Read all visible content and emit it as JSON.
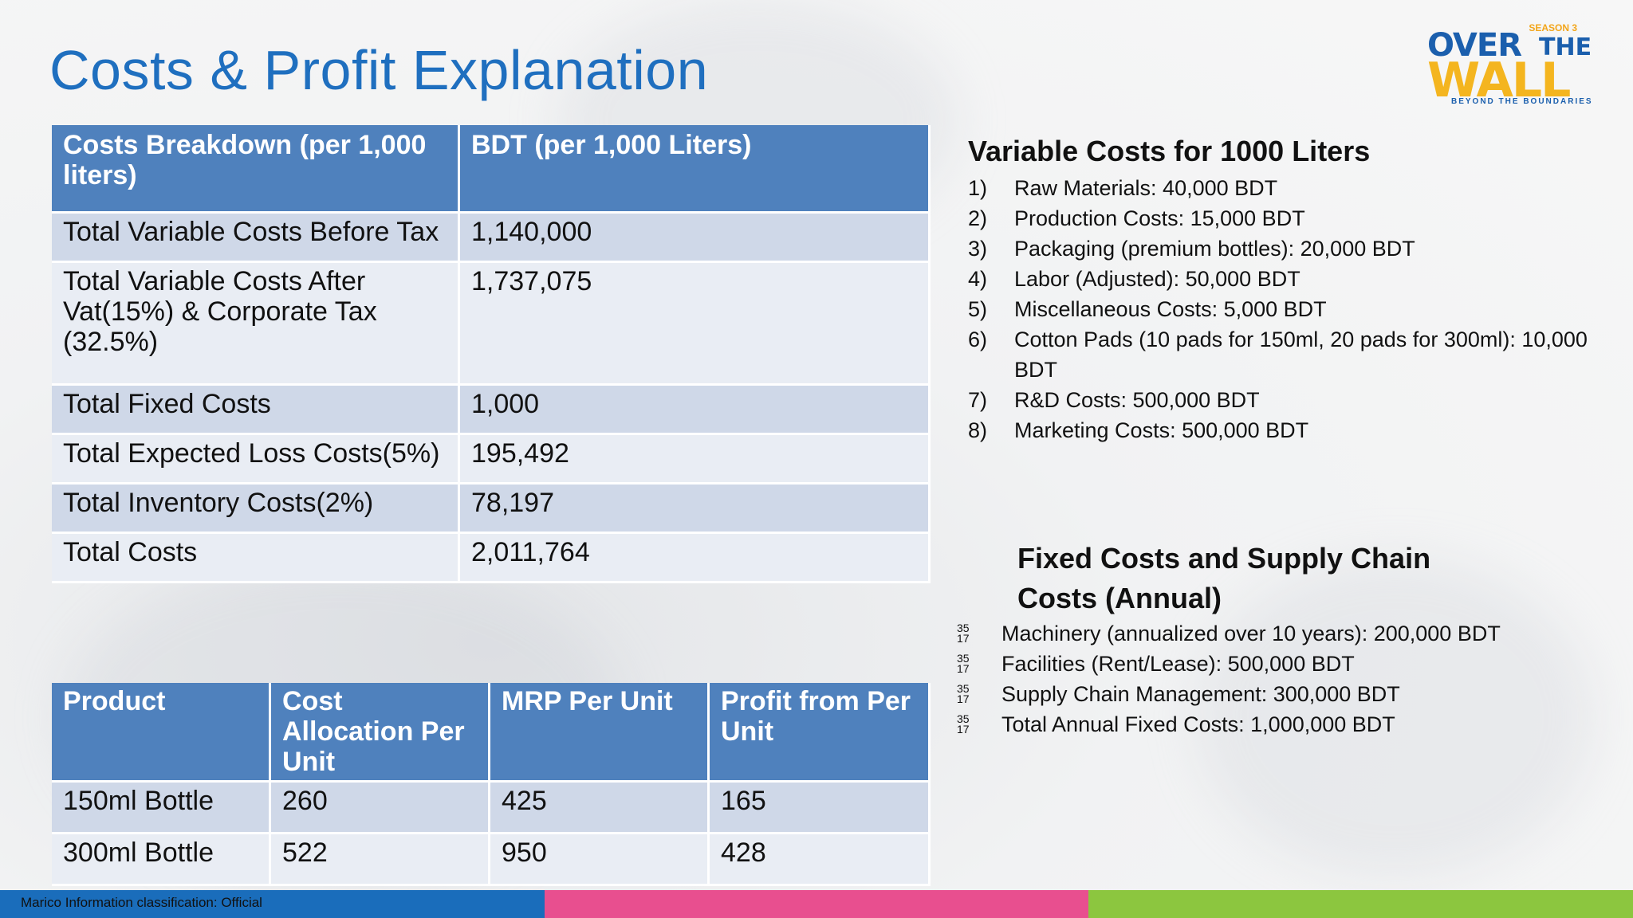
{
  "title": "Costs & Profit Explanation",
  "logo": {
    "season": "SEASON 3",
    "over": "OVER",
    "the": "THE",
    "wall": "WALL",
    "tagline": "BEYOND THE BOUNDARIES"
  },
  "costs_table": {
    "headers": [
      "Costs Breakdown (per 1,000 liters)",
      "BDT (per 1,000 Liters)"
    ],
    "rows": [
      [
        "Total Variable Costs Before Tax",
        "1,140,000"
      ],
      [
        "Total Variable Costs After Vat(15%) & Corporate Tax (32.5%)",
        "1,737,075"
      ],
      [
        "Total Fixed Costs",
        "1,000"
      ],
      [
        "Total Expected Loss Costs(5%)",
        "195,492"
      ],
      [
        "Total Inventory Costs(2%)",
        "78,197"
      ],
      [
        "Total Costs",
        "2,011,764"
      ]
    ]
  },
  "product_table": {
    "headers": [
      "Product",
      "Cost Allocation Per Unit",
      "MRP Per Unit",
      "Profit from Per Unit"
    ],
    "rows": [
      [
        "150ml Bottle",
        "260",
        "425",
        "165"
      ],
      [
        "300ml Bottle",
        "522",
        "950",
        "428"
      ]
    ]
  },
  "variable_costs": {
    "heading": "Variable Costs for 1000 Liters",
    "items": [
      {
        "num": "1)",
        "text": "Raw Materials: 40,000 BDT"
      },
      {
        "num": "2)",
        "text": "Production Costs: 15,000 BDT"
      },
      {
        "num": "3)",
        "text": "Packaging (premium bottles): 20,000 BDT"
      },
      {
        "num": "4)",
        "text": "Labor (Adjusted): 50,000 BDT"
      },
      {
        "num": "5)",
        "text": "Miscellaneous Costs: 5,000 BDT"
      },
      {
        "num": "6)",
        "text": "Cotton Pads (10 pads for 150ml, 20 pads for 300ml): 10,000 BDT"
      },
      {
        "num": "7)",
        "text": "R&D Costs: 500,000 BDT"
      },
      {
        "num": "8)",
        "text": "Marketing Costs: 500,000 BDT"
      }
    ]
  },
  "fixed_costs": {
    "heading": "Fixed Costs and Supply Chain Costs (Annual)",
    "bullet_top": "35",
    "bullet_bottom": "17",
    "items": [
      "Machinery (annualized over 10 years): 200,000 BDT",
      "Facilities (Rent/Lease): 500,000 BDT",
      "Supply Chain Management: 300,000 BDT",
      "Total Annual Fixed Costs: 1,000,000 BDT"
    ]
  },
  "footer": {
    "text": "Marico Information classification: Official",
    "colors": [
      "#1a6dbb",
      "#e84f8f",
      "#8cc63f"
    ]
  },
  "theme": {
    "header_blue": "#4f81bd",
    "row_dark": "#cfd8e8",
    "row_light": "#e9edf4",
    "title_blue": "#1f6fbf"
  }
}
